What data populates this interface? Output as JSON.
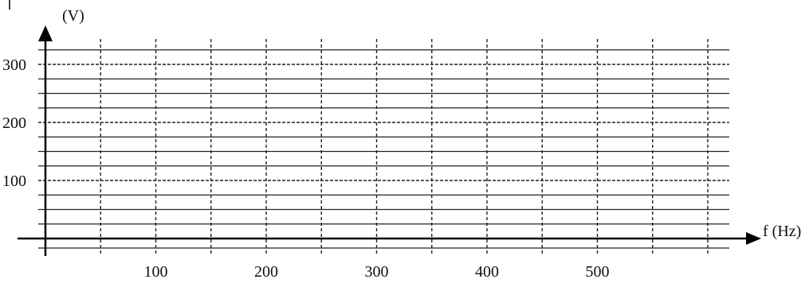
{
  "chart_data": {
    "type": "line",
    "title": "",
    "xlabel": "f (Hz)",
    "ylabel": "(V)",
    "x_ticks": [
      100,
      200,
      300,
      400,
      500
    ],
    "y_ticks": [
      100,
      200,
      300
    ],
    "xlim": [
      0,
      600
    ],
    "ylim": [
      0,
      350
    ],
    "grid": true,
    "series": []
  }
}
